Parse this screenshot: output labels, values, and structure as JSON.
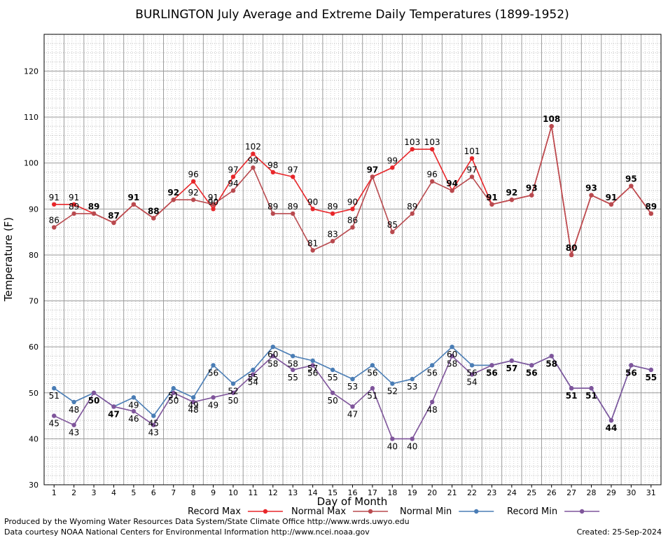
{
  "chart_data": {
    "type": "line",
    "title": "BURLINGTON July Average and Extreme Daily Temperatures (1899-1952)",
    "xlabel": "Day of Month",
    "ylabel": "Temperature (F)",
    "ylim": [
      30,
      128
    ],
    "xlim": [
      0.5,
      31.5
    ],
    "yticks": [
      30,
      40,
      50,
      60,
      70,
      80,
      90,
      100,
      110,
      120
    ],
    "x": [
      1,
      2,
      3,
      4,
      5,
      6,
      7,
      8,
      9,
      10,
      11,
      12,
      13,
      14,
      15,
      16,
      17,
      18,
      19,
      20,
      21,
      22,
      23,
      24,
      25,
      26,
      27,
      28,
      29,
      30,
      31
    ],
    "grid": true,
    "legend_position": "bottom",
    "series": [
      {
        "name": "Record Max",
        "color": "#e8262a",
        "values": [
          91,
          91,
          89,
          87,
          91,
          88,
          92,
          96,
          90,
          97,
          102,
          98,
          97,
          90,
          89,
          90,
          97,
          99,
          103,
          103,
          94,
          101,
          91,
          92,
          93,
          108,
          80,
          93,
          91,
          95,
          89
        ]
      },
      {
        "name": "Normal Max",
        "color": "#b94a4f",
        "values": [
          86,
          89,
          89,
          87,
          91,
          88,
          92,
          92,
          91,
          94,
          99,
          89,
          89,
          81,
          83,
          86,
          97,
          85,
          89,
          96,
          94,
          97,
          91,
          92,
          93,
          108,
          80,
          93,
          91,
          95,
          89
        ]
      },
      {
        "name": "Normal Min",
        "color": "#4a7db5",
        "values": [
          51,
          48,
          50,
          47,
          49,
          45,
          51,
          49,
          56,
          52,
          55,
          60,
          58,
          57,
          55,
          53,
          56,
          52,
          53,
          56,
          60,
          56,
          56,
          57,
          56,
          58,
          51,
          51,
          44,
          56,
          55
        ]
      },
      {
        "name": "Record Min",
        "color": "#7f559b",
        "values": [
          45,
          43,
          50,
          47,
          46,
          43,
          50,
          48,
          49,
          50,
          54,
          58,
          55,
          56,
          50,
          47,
          51,
          40,
          40,
          48,
          58,
          54,
          56,
          57,
          56,
          58,
          51,
          51,
          44,
          56,
          55
        ]
      }
    ]
  },
  "footer": {
    "producer": "Produced by the Wyoming Water Resources Data System/State Climate Office http://www.wrds.uwyo.edu",
    "courtesy": "Data courtesy NOAA National Centers for Environmental Information http://www.ncei.noaa.gov",
    "created": "Created:  25-Sep-2024"
  }
}
